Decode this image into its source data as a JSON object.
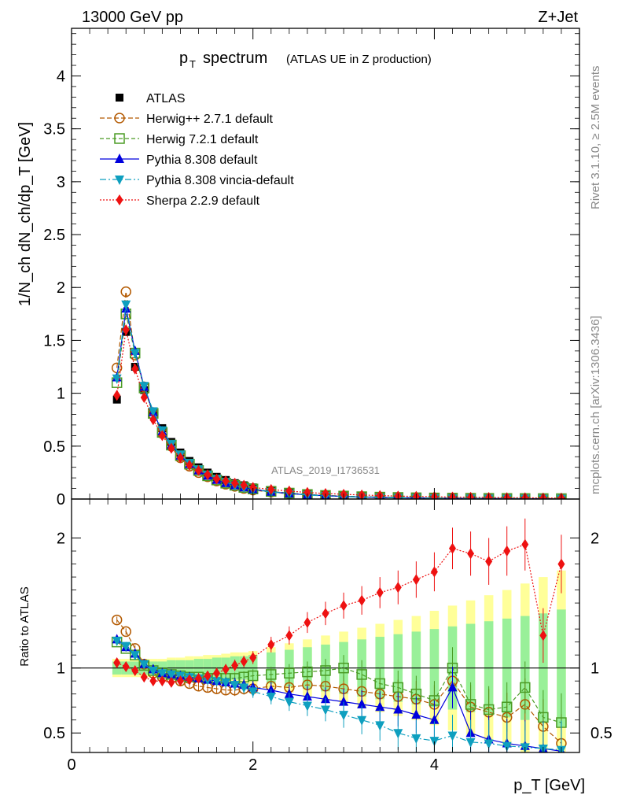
{
  "header": {
    "energy": "13000 GeV pp",
    "process": "Z+Jet",
    "analysis_id": "ATLAS_2019_I1736531",
    "side_rivet": "Rivet 3.1.10, ≥ 2.5M events",
    "side_site": "mcplots.cern.ch [arXiv:1306.3436]"
  },
  "chart_data": [
    {
      "type": "line",
      "panel": "main",
      "title_main": "p",
      "title_sub": "T",
      "title_word": "spectrum",
      "title_note": "(ATLAS UE in Z production)",
      "ylabel": "1/N_ch dN_ch/dp_T [GeV]",
      "xlabel": "p_T [GeV]",
      "xlim": [
        0,
        5.6
      ],
      "ylim": [
        0,
        4.45
      ],
      "yticks": [
        "0",
        "0.5",
        "1",
        "1.5",
        "2",
        "2.5",
        "3",
        "3.5",
        "4"
      ],
      "x": [
        0.5,
        0.6,
        0.7,
        0.8,
        0.9,
        1.0,
        1.1,
        1.2,
        1.3,
        1.4,
        1.5,
        1.6,
        1.7,
        1.8,
        1.9,
        2.0,
        2.2,
        2.4,
        2.6,
        2.8,
        3.0,
        3.2,
        3.4,
        3.6,
        3.8,
        4.0,
        4.2,
        4.4,
        4.6,
        4.8,
        5.0,
        5.2,
        5.4
      ],
      "series": [
        {
          "name": "ATLAS",
          "style": "data-square",
          "color": "#000000",
          "values": [
            0.94,
            1.58,
            1.25,
            1.03,
            0.83,
            0.67,
            0.54,
            0.44,
            0.36,
            0.3,
            0.25,
            0.21,
            0.18,
            0.15,
            0.13,
            0.11,
            0.085,
            0.065,
            0.05,
            0.04,
            0.032,
            0.026,
            0.021,
            0.017,
            0.014,
            0.012,
            0.01,
            0.0085,
            0.0072,
            0.0062,
            0.0053,
            0.0046,
            0.004
          ]
        },
        {
          "name": "Herwig++ 2.7.1 default",
          "style": "open-circle",
          "color": "#b35900",
          "values": [
            1.24,
            1.96,
            1.36,
            1.06,
            0.8,
            0.62,
            0.5,
            0.39,
            0.31,
            0.25,
            0.21,
            0.17,
            0.14,
            0.12,
            0.1,
            0.085,
            0.065,
            0.05,
            0.04,
            0.032,
            0.026,
            0.021,
            0.017,
            0.014,
            0.011,
            0.009,
            0.008,
            0.007,
            0.006,
            0.005,
            0.0044,
            0.0038,
            0.0033
          ]
        },
        {
          "name": "Herwig 7.2.1 default",
          "style": "open-square",
          "color": "#4a9b24",
          "values": [
            1.1,
            1.75,
            1.38,
            1.05,
            0.81,
            0.63,
            0.51,
            0.41,
            0.33,
            0.27,
            0.22,
            0.18,
            0.15,
            0.13,
            0.11,
            0.095,
            0.072,
            0.056,
            0.043,
            0.034,
            0.028,
            0.022,
            0.018,
            0.015,
            0.012,
            0.01,
            0.0085,
            0.0072,
            0.0062,
            0.0053,
            0.0046,
            0.004,
            0.0035
          ]
        },
        {
          "name": "Pythia 8.308 default",
          "style": "filled-triangle-up",
          "color": "#0000dd",
          "values": [
            1.15,
            1.8,
            1.4,
            1.06,
            0.82,
            0.64,
            0.51,
            0.41,
            0.33,
            0.27,
            0.22,
            0.18,
            0.15,
            0.13,
            0.11,
            0.092,
            0.069,
            0.052,
            0.04,
            0.031,
            0.024,
            0.019,
            0.015,
            0.012,
            0.01,
            0.008,
            0.0068,
            0.0058,
            0.005,
            0.0043,
            0.0037,
            0.0032,
            0.0028
          ]
        },
        {
          "name": "Pythia 8.308 vincia-default",
          "style": "filled-triangle-down",
          "color": "#0e9fbf",
          "values": [
            1.14,
            1.84,
            1.38,
            1.07,
            0.83,
            0.65,
            0.52,
            0.42,
            0.34,
            0.28,
            0.23,
            0.19,
            0.16,
            0.13,
            0.11,
            0.09,
            0.067,
            0.05,
            0.038,
            0.029,
            0.022,
            0.017,
            0.014,
            0.011,
            0.009,
            0.0075,
            0.0063,
            0.0053,
            0.0045,
            0.0039,
            0.0034,
            0.0029,
            0.0025
          ]
        },
        {
          "name": "Sherpa 2.2.9 default",
          "style": "filled-diamond",
          "color": "#ee1111",
          "values": [
            0.98,
            1.6,
            1.23,
            0.96,
            0.75,
            0.6,
            0.48,
            0.39,
            0.32,
            0.27,
            0.23,
            0.19,
            0.17,
            0.15,
            0.13,
            0.11,
            0.09,
            0.075,
            0.062,
            0.052,
            0.045,
            0.038,
            0.033,
            0.028,
            0.025,
            0.022,
            0.019,
            0.017,
            0.015,
            0.013,
            0.012,
            0.01,
            0.009
          ]
        }
      ]
    },
    {
      "type": "line",
      "panel": "ratio",
      "ylabel": "Ratio to ATLAS",
      "xlabel": "p_T [GeV]",
      "xlim": [
        0,
        5.6
      ],
      "ylim": [
        0.35,
        2.3
      ],
      "yticks": [
        "0.5",
        "1",
        "2"
      ],
      "xticks": [
        "0",
        "2",
        "4"
      ],
      "x": [
        0.5,
        0.6,
        0.7,
        0.8,
        0.9,
        1.0,
        1.1,
        1.2,
        1.3,
        1.4,
        1.5,
        1.6,
        1.7,
        1.8,
        1.9,
        2.0,
        2.2,
        2.4,
        2.6,
        2.8,
        3.0,
        3.2,
        3.4,
        3.6,
        3.8,
        4.0,
        4.2,
        4.4,
        4.6,
        4.8,
        5.0,
        5.2,
        5.4
      ],
      "band_inner": [
        0.05,
        0.05,
        0.05,
        0.05,
        0.05,
        0.05,
        0.06,
        0.06,
        0.06,
        0.07,
        0.07,
        0.08,
        0.08,
        0.09,
        0.09,
        0.1,
        0.12,
        0.14,
        0.16,
        0.18,
        0.2,
        0.22,
        0.24,
        0.26,
        0.28,
        0.3,
        0.32,
        0.34,
        0.36,
        0.38,
        0.4,
        0.42,
        0.45
      ],
      "band_outer": [
        0.07,
        0.07,
        0.07,
        0.07,
        0.07,
        0.07,
        0.08,
        0.08,
        0.09,
        0.09,
        0.1,
        0.1,
        0.11,
        0.12,
        0.12,
        0.13,
        0.16,
        0.19,
        0.22,
        0.25,
        0.28,
        0.31,
        0.34,
        0.37,
        0.4,
        0.44,
        0.48,
        0.52,
        0.56,
        0.6,
        0.65,
        0.7,
        0.75
      ],
      "series": [
        {
          "name": "Herwig++ 2.7.1 default",
          "color": "#b35900",
          "values": [
            1.37,
            1.28,
            1.15,
            1.03,
            0.96,
            0.93,
            0.92,
            0.9,
            0.88,
            0.86,
            0.85,
            0.84,
            0.83,
            0.83,
            0.84,
            0.84,
            0.86,
            0.85,
            0.87,
            0.86,
            0.84,
            0.82,
            0.8,
            0.78,
            0.76,
            0.72,
            0.9,
            0.7,
            0.66,
            0.62,
            0.72,
            0.55,
            0.42
          ]
        },
        {
          "name": "Herwig 7.2.1 default",
          "color": "#4a9b24",
          "values": [
            1.2,
            1.15,
            1.1,
            1.02,
            0.98,
            0.96,
            0.95,
            0.94,
            0.93,
            0.93,
            0.92,
            0.92,
            0.92,
            0.92,
            0.93,
            0.94,
            0.95,
            0.96,
            0.97,
            0.98,
            1.0,
            0.95,
            0.88,
            0.85,
            0.8,
            0.75,
            1.0,
            0.72,
            0.68,
            0.7,
            0.85,
            0.62,
            0.58
          ]
        },
        {
          "name": "Pythia 8.308 default",
          "color": "#0000dd",
          "values": [
            1.22,
            1.16,
            1.11,
            1.03,
            0.99,
            0.96,
            0.95,
            0.94,
            0.93,
            0.92,
            0.91,
            0.9,
            0.89,
            0.88,
            0.87,
            0.85,
            0.83,
            0.8,
            0.78,
            0.76,
            0.74,
            0.72,
            0.7,
            0.68,
            0.64,
            0.6,
            0.85,
            0.5,
            0.45,
            0.42,
            0.4,
            0.38,
            0.36
          ]
        },
        {
          "name": "Pythia 8.308 vincia-default",
          "color": "#0e9fbf",
          "values": [
            1.21,
            1.17,
            1.1,
            1.03,
            0.98,
            0.96,
            0.95,
            0.94,
            0.93,
            0.92,
            0.91,
            0.9,
            0.89,
            0.87,
            0.85,
            0.82,
            0.78,
            0.74,
            0.71,
            0.68,
            0.64,
            0.6,
            0.56,
            0.5,
            0.46,
            0.44,
            0.48,
            0.43,
            0.42,
            0.4,
            0.39,
            0.38,
            0.37
          ]
        },
        {
          "name": "Sherpa 2.2.9 default",
          "color": "#ee1111",
          "values": [
            1.04,
            1.01,
            0.98,
            0.93,
            0.9,
            0.9,
            0.89,
            0.9,
            0.91,
            0.92,
            0.94,
            0.96,
            0.99,
            1.02,
            1.05,
            1.08,
            1.18,
            1.25,
            1.35,
            1.42,
            1.48,
            1.52,
            1.58,
            1.62,
            1.68,
            1.74,
            1.92,
            1.88,
            1.82,
            1.9,
            1.95,
            1.25,
            1.8
          ]
        }
      ]
    }
  ]
}
